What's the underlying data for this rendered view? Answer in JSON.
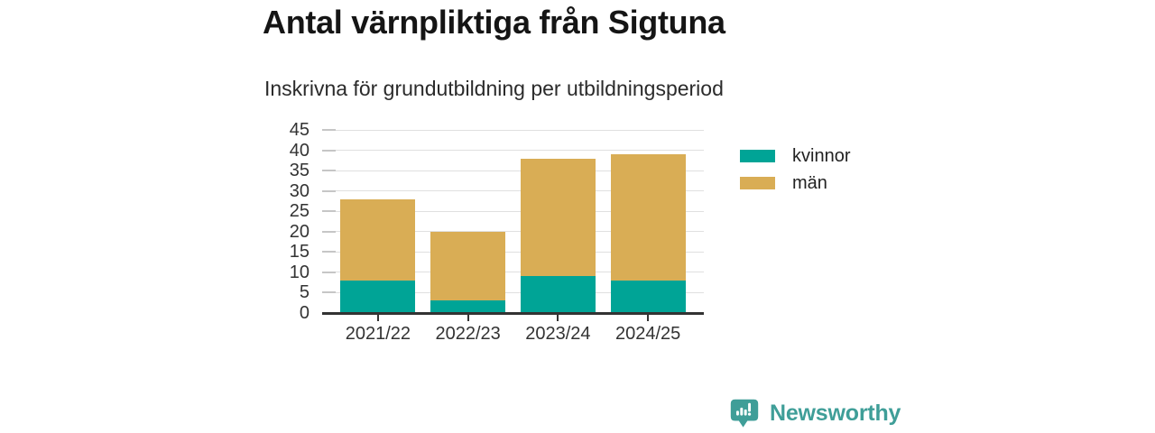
{
  "header": {
    "title": "Antal värnpliktiga från Sigtuna",
    "subtitle": "Inskrivna för grundutbildning per utbildningsperiod"
  },
  "chart_data": {
    "type": "bar",
    "stacked": true,
    "title": "Antal värnpliktiga från Sigtuna",
    "subtitle": "Inskrivna för grundutbildning per utbildningsperiod",
    "categories": [
      "2021/22",
      "2022/23",
      "2023/24",
      "2024/25"
    ],
    "series": [
      {
        "name": "kvinnor",
        "color": "#00a496",
        "values": [
          8,
          3,
          9,
          8
        ]
      },
      {
        "name": "män",
        "color": "#d9ad55",
        "values": [
          20,
          17,
          29,
          31
        ]
      }
    ],
    "totals": [
      28,
      20,
      38,
      39
    ],
    "xlabel": "",
    "ylabel": "",
    "ylim": [
      0,
      45
    ],
    "yticks": [
      0,
      5,
      10,
      15,
      20,
      25,
      30,
      35,
      40,
      45
    ],
    "grid": true,
    "legend_position": "right"
  },
  "footer": {
    "brand": "Newsworthy",
    "brand_color": "#3f9e98",
    "logo_icon": "newsworthy-speech-bubble-bar-chart-icon"
  },
  "colors": {
    "background": "#ffffff",
    "kvinnor": "#00a496",
    "man": "#d9ad55",
    "gridline": "#e0e0e0",
    "axis": "#333333",
    "text": "#2b2b2b"
  }
}
